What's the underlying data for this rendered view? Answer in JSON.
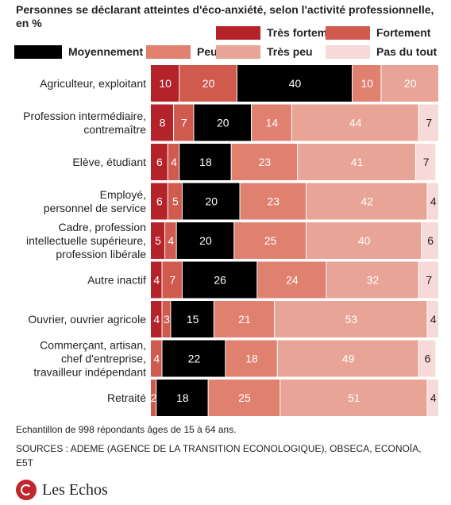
{
  "title": "Personnes se déclarant atteintes d'éco-anxiété, selon l'activité professionnelle, en %",
  "chart_data": {
    "type": "bar",
    "orientation": "horizontal",
    "stacked": true,
    "categories": [
      "Agriculteur, exploitant",
      "Profession intermédiaire, contremaître",
      "Elève, étudiant",
      "Employé, personnel de service",
      "Cadre, profession intellectuelle supérieure, profession libérale",
      "Autre inactif",
      "Ouvrier, ouvrier agricole",
      "Commerçant, artisan, chef d'entreprise, travailleur indépendant",
      "Retraité"
    ],
    "category_lines": [
      [
        "Agriculteur, exploitant"
      ],
      [
        "Profession intermédiaire,",
        "contremaître"
      ],
      [
        "Elève, étudiant"
      ],
      [
        "Employé,",
        "personnel de service"
      ],
      [
        "Cadre, profession",
        "intellectuelle supérieure,",
        "profession libérale"
      ],
      [
        "Autre inactif"
      ],
      [
        "Ouvrier, ouvrier agricole"
      ],
      [
        "Commerçant, artisan,",
        "chef d'entreprise,",
        "travailleur indépendant"
      ],
      [
        "Retraité"
      ]
    ],
    "series": [
      {
        "name": "Très fortement",
        "color": "#b5232a",
        "text_color": "#ffffff",
        "values": [
          10,
          8,
          6,
          6,
          5,
          4,
          4,
          0,
          0
        ]
      },
      {
        "name": "Fortement",
        "color": "#d05a4e",
        "text_color": "#ffffff",
        "values": [
          20,
          7,
          4,
          5,
          4,
          7,
          3,
          4,
          2
        ]
      },
      {
        "name": "Moyennement",
        "color": "#000000",
        "text_color": "#ffffff",
        "values": [
          40,
          20,
          18,
          20,
          20,
          26,
          15,
          22,
          18
        ]
      },
      {
        "name": "Peu",
        "color": "#e0806f",
        "text_color": "#ffffff",
        "values": [
          10,
          14,
          23,
          23,
          25,
          24,
          21,
          18,
          25
        ]
      },
      {
        "name": "Très peu",
        "color": "#e8a496",
        "text_color": "#ffffff",
        "values": [
          20,
          44,
          41,
          42,
          40,
          32,
          53,
          49,
          51
        ]
      },
      {
        "name": "Pas du tout",
        "color": "#f7d9d7",
        "text_color": "#222222",
        "values": [
          0,
          7,
          7,
          4,
          6,
          7,
          4,
          6,
          4
        ]
      }
    ],
    "xlim": [
      0,
      100
    ],
    "legend_position": "top",
    "grid": false
  },
  "footnote": "Echantillon de 998 répondants âges de 15 à 64 ans.",
  "sources": "SOURCES : ADEME (AGENCE DE LA TRANSITION ECONOLOGIQUE), OBSECA, ECONOÏA, E5T",
  "logo_text": "Les Echos"
}
